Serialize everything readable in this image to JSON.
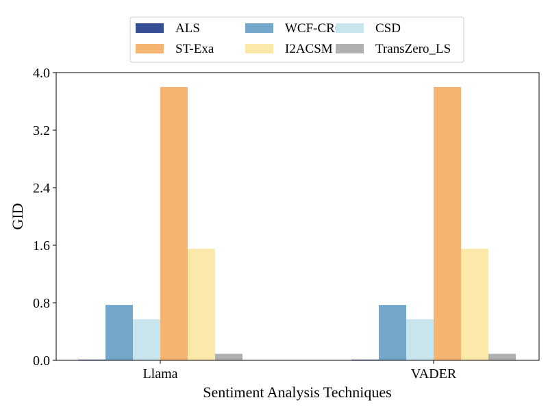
{
  "chart_data": {
    "type": "bar",
    "title": "",
    "xlabel": "Sentiment Analysis Techniques",
    "ylabel": "GID",
    "categories": [
      "Llama",
      "VADER"
    ],
    "ylim": [
      0,
      4.0
    ],
    "yticks": [
      "0.0",
      "0.8",
      "1.6",
      "2.4",
      "3.2",
      "4.0"
    ],
    "ytick_values": [
      0,
      0.8,
      1.6,
      2.4,
      3.2,
      4.0
    ],
    "grid": false,
    "legend_position": "top-center",
    "series": [
      {
        "name": "ALS",
        "color": "#354e96",
        "values": [
          0.01,
          0.01
        ]
      },
      {
        "name": "WCF-CRC",
        "color": "#74a7c9",
        "values": [
          0.77,
          0.77
        ]
      },
      {
        "name": "CSD",
        "color": "#c8e5ee",
        "values": [
          0.57,
          0.57
        ]
      },
      {
        "name": "ST-Exa",
        "color": "#f5b472",
        "values": [
          3.8,
          3.8
        ]
      },
      {
        "name": "I2ACSM",
        "color": "#fbe9a9",
        "values": [
          1.55,
          1.55
        ]
      },
      {
        "name": "TransZero_LS",
        "color": "#b0b0b0",
        "values": [
          0.09,
          0.09
        ]
      }
    ]
  }
}
